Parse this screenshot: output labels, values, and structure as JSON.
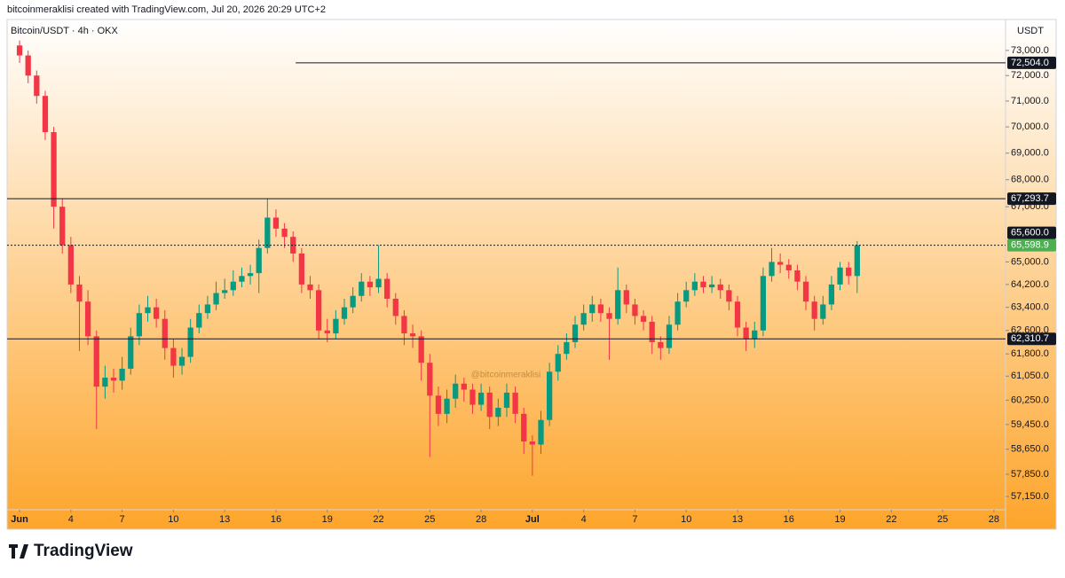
{
  "header": {
    "credit": "bitcoinmeraklisi created with TradingView.com, Jul 20, 2026 20:29 UTC+2"
  },
  "footer": {
    "brand": "TradingView"
  },
  "chart_data": {
    "type": "candlestick",
    "symbol": "Bitcoin/USDT · 4h · OKX",
    "unit": "USDT",
    "watermark": "@bitcoinmeraklisi",
    "up_color": "#089981",
    "down_color": "#f23645",
    "log_scale": true,
    "xlim": [
      -0.73,
      57.68
    ],
    "ylim": [
      56130,
      74250
    ],
    "xticks": [
      {
        "value": 0,
        "label": "Jun"
      },
      {
        "value": 3,
        "label": "4"
      },
      {
        "value": 6,
        "label": "7"
      },
      {
        "value": 9,
        "label": "10"
      },
      {
        "value": 12,
        "label": "13"
      },
      {
        "value": 15,
        "label": "16"
      },
      {
        "value": 18,
        "label": "19"
      },
      {
        "value": 21,
        "label": "22"
      },
      {
        "value": 24,
        "label": "25"
      },
      {
        "value": 27,
        "label": "28"
      },
      {
        "value": 30,
        "label": "Jul"
      },
      {
        "value": 33,
        "label": "4"
      },
      {
        "value": 36,
        "label": "7"
      },
      {
        "value": 39,
        "label": "10"
      },
      {
        "value": 42,
        "label": "13"
      },
      {
        "value": 45,
        "label": "16"
      },
      {
        "value": 48,
        "label": "19"
      },
      {
        "value": 51,
        "label": "22"
      },
      {
        "value": 54,
        "label": "25"
      },
      {
        "value": 57,
        "label": "28"
      }
    ],
    "yticks": [
      {
        "value": 73000,
        "label": "73,000.0"
      },
      {
        "value": 72000,
        "label": "72,000.0"
      },
      {
        "value": 71000,
        "label": "71,000.0"
      },
      {
        "value": 70000,
        "label": "70,000.0"
      },
      {
        "value": 69000,
        "label": "69,000.0"
      },
      {
        "value": 68000,
        "label": "68,000.0"
      },
      {
        "value": 67000,
        "label": "67,000.0"
      },
      {
        "value": 65000,
        "label": "65,000.0"
      },
      {
        "value": 64200,
        "label": "64,200.0"
      },
      {
        "value": 63400,
        "label": "63,400.0"
      },
      {
        "value": 62600,
        "label": "62,600.0"
      },
      {
        "value": 61800,
        "label": "61,800.0"
      },
      {
        "value": 61050,
        "label": "61,050.0"
      },
      {
        "value": 60250,
        "label": "60,250.0"
      },
      {
        "value": 59450,
        "label": "59,450.0"
      },
      {
        "value": 58650,
        "label": "58,650.0"
      },
      {
        "value": 57850,
        "label": "57,850.0"
      },
      {
        "value": 57150,
        "label": "57,150.0"
      }
    ],
    "levels": [
      {
        "value": 72504,
        "label": "72,504.0",
        "x_start": 16.15
      },
      {
        "value": 67293.7,
        "label": "67,293.7"
      },
      {
        "value": 65600,
        "label": "65,600.0"
      },
      {
        "value": 62310.7,
        "label": "62,310.7"
      }
    ],
    "last_price": {
      "value": 65598.9,
      "label": "65,598.9",
      "color": "#4caf50"
    },
    "x": [
      0,
      0.5,
      1,
      1.5,
      2,
      2.5,
      3,
      3.5,
      4,
      4.5,
      5,
      5.5,
      6,
      6.5,
      7,
      7.5,
      8,
      8.5,
      9,
      9.5,
      10,
      10.5,
      11,
      11.5,
      12,
      12.5,
      13,
      13.5,
      14,
      14.5,
      15,
      15.5,
      16,
      16.5,
      17,
      17.5,
      18,
      18.5,
      19,
      19.5,
      20,
      20.5,
      21,
      21.5,
      22,
      22.5,
      23,
      23.5,
      24,
      24.5,
      25,
      25.5,
      26,
      26.5,
      27,
      27.5,
      28,
      28.5,
      29,
      29.5,
      30,
      30.5,
      31,
      31.5,
      32,
      32.5,
      33,
      33.5,
      34,
      34.5,
      35,
      35.5,
      36,
      36.5,
      37,
      37.5,
      38,
      38.5,
      39,
      39.5,
      40,
      40.5,
      41,
      41.5,
      42,
      42.5,
      43,
      43.5,
      44,
      44.5,
      45,
      45.5,
      46,
      46.5,
      47,
      47.5,
      48,
      48.5,
      49
    ],
    "ohlc": [
      [
        73200,
        73400,
        72500,
        72800
      ],
      [
        72800,
        73000,
        71700,
        72000
      ],
      [
        72000,
        72200,
        70900,
        71200
      ],
      [
        71200,
        71400,
        69500,
        69800
      ],
      [
        69800,
        70000,
        66200,
        67000
      ],
      [
        67000,
        67300,
        65300,
        65600
      ],
      [
        65600,
        65900,
        63900,
        64200
      ],
      [
        64200,
        64500,
        61900,
        63600
      ],
      [
        63600,
        64000,
        62100,
        62400
      ],
      [
        62400,
        62600,
        59300,
        60700
      ],
      [
        60700,
        61400,
        60300,
        61000
      ],
      [
        61000,
        61300,
        60500,
        60900
      ],
      [
        60900,
        61700,
        60600,
        61300
      ],
      [
        61300,
        62700,
        61100,
        62400
      ],
      [
        62400,
        63500,
        62100,
        63200
      ],
      [
        63200,
        63800,
        62900,
        63400
      ],
      [
        63400,
        63700,
        62700,
        63000
      ],
      [
        63000,
        63300,
        61600,
        62000
      ],
      [
        62000,
        62300,
        61000,
        61400
      ],
      [
        61400,
        62000,
        61100,
        61700
      ],
      [
        61700,
        63000,
        61500,
        62700
      ],
      [
        62700,
        63500,
        62500,
        63200
      ],
      [
        63200,
        63800,
        63000,
        63500
      ],
      [
        63500,
        64300,
        63300,
        63900
      ],
      [
        63900,
        64400,
        63700,
        64000
      ],
      [
        64000,
        64700,
        63800,
        64300
      ],
      [
        64300,
        64800,
        64100,
        64500
      ],
      [
        64500,
        64900,
        64200,
        64600
      ],
      [
        64600,
        65800,
        63900,
        65500
      ],
      [
        65500,
        67290,
        65300,
        66600
      ],
      [
        66600,
        66900,
        65900,
        66200
      ],
      [
        66200,
        66400,
        65500,
        65900
      ],
      [
        65900,
        66100,
        65000,
        65300
      ],
      [
        65300,
        65500,
        63900,
        64200
      ],
      [
        64200,
        64500,
        63700,
        64000
      ],
      [
        64000,
        64200,
        62300,
        62600
      ],
      [
        62600,
        63000,
        62200,
        62500
      ],
      [
        62500,
        63300,
        62300,
        63000
      ],
      [
        63000,
        63700,
        62800,
        63400
      ],
      [
        63400,
        64100,
        63200,
        63800
      ],
      [
        63800,
        64600,
        63600,
        64300
      ],
      [
        64300,
        64500,
        63800,
        64100
      ],
      [
        64100,
        65600,
        63900,
        64400
      ],
      [
        64400,
        64600,
        63400,
        63700
      ],
      [
        63700,
        63900,
        62800,
        63100
      ],
      [
        63100,
        63300,
        62100,
        62500
      ],
      [
        62500,
        62800,
        62000,
        62400
      ],
      [
        62400,
        62600,
        60900,
        61500
      ],
      [
        61500,
        61800,
        58400,
        60400
      ],
      [
        60400,
        60700,
        59400,
        59800
      ],
      [
        59800,
        60600,
        59500,
        60300
      ],
      [
        60300,
        61100,
        60000,
        60800
      ],
      [
        60800,
        61000,
        60200,
        60600
      ],
      [
        60600,
        60800,
        59800,
        60100
      ],
      [
        60100,
        60800,
        59900,
        60500
      ],
      [
        60500,
        60700,
        59300,
        59700
      ],
      [
        59700,
        60300,
        59400,
        60000
      ],
      [
        60000,
        60800,
        59700,
        60500
      ],
      [
        60500,
        60700,
        59500,
        59800
      ],
      [
        59800,
        60000,
        58500,
        58900
      ],
      [
        58900,
        59100,
        57800,
        58800
      ],
      [
        58800,
        59900,
        58500,
        59600
      ],
      [
        59600,
        61500,
        59400,
        61200
      ],
      [
        61200,
        62100,
        60900,
        61800
      ],
      [
        61800,
        62500,
        61600,
        62200
      ],
      [
        62200,
        63100,
        62000,
        62800
      ],
      [
        62800,
        63500,
        62600,
        63200
      ],
      [
        63200,
        63800,
        62900,
        63500
      ],
      [
        63500,
        63700,
        62900,
        63200
      ],
      [
        63200,
        63400,
        61600,
        63000
      ],
      [
        63000,
        64800,
        62800,
        64000
      ],
      [
        64000,
        64200,
        63200,
        63500
      ],
      [
        63500,
        63700,
        62800,
        63100
      ],
      [
        63100,
        63300,
        62600,
        62900
      ],
      [
        62900,
        63100,
        61800,
        62200
      ],
      [
        62200,
        62400,
        61600,
        62000
      ],
      [
        62000,
        63100,
        61800,
        62800
      ],
      [
        62800,
        63900,
        62600,
        63600
      ],
      [
        63600,
        64300,
        63400,
        64000
      ],
      [
        64000,
        64600,
        63800,
        64300
      ],
      [
        64300,
        64500,
        63900,
        64100
      ],
      [
        64100,
        64500,
        63900,
        64200
      ],
      [
        64200,
        64400,
        63700,
        64000
      ],
      [
        64000,
        64200,
        63300,
        63600
      ],
      [
        63600,
        63800,
        62400,
        62700
      ],
      [
        62700,
        62900,
        61900,
        62300
      ],
      [
        62300,
        62900,
        62000,
        62600
      ],
      [
        62600,
        64800,
        62400,
        64500
      ],
      [
        64500,
        65500,
        64300,
        65000
      ],
      [
        65000,
        65300,
        64600,
        64900
      ],
      [
        64900,
        65100,
        64400,
        64700
      ],
      [
        64700,
        64900,
        64000,
        64300
      ],
      [
        64300,
        64500,
        63300,
        63600
      ],
      [
        63600,
        63800,
        62600,
        63000
      ],
      [
        63000,
        63800,
        62800,
        63500
      ],
      [
        63500,
        64500,
        63300,
        64200
      ],
      [
        64200,
        65000,
        64000,
        64800
      ],
      [
        64800,
        65000,
        64200,
        64500
      ],
      [
        64500,
        65750,
        63900,
        65598.9
      ]
    ]
  }
}
